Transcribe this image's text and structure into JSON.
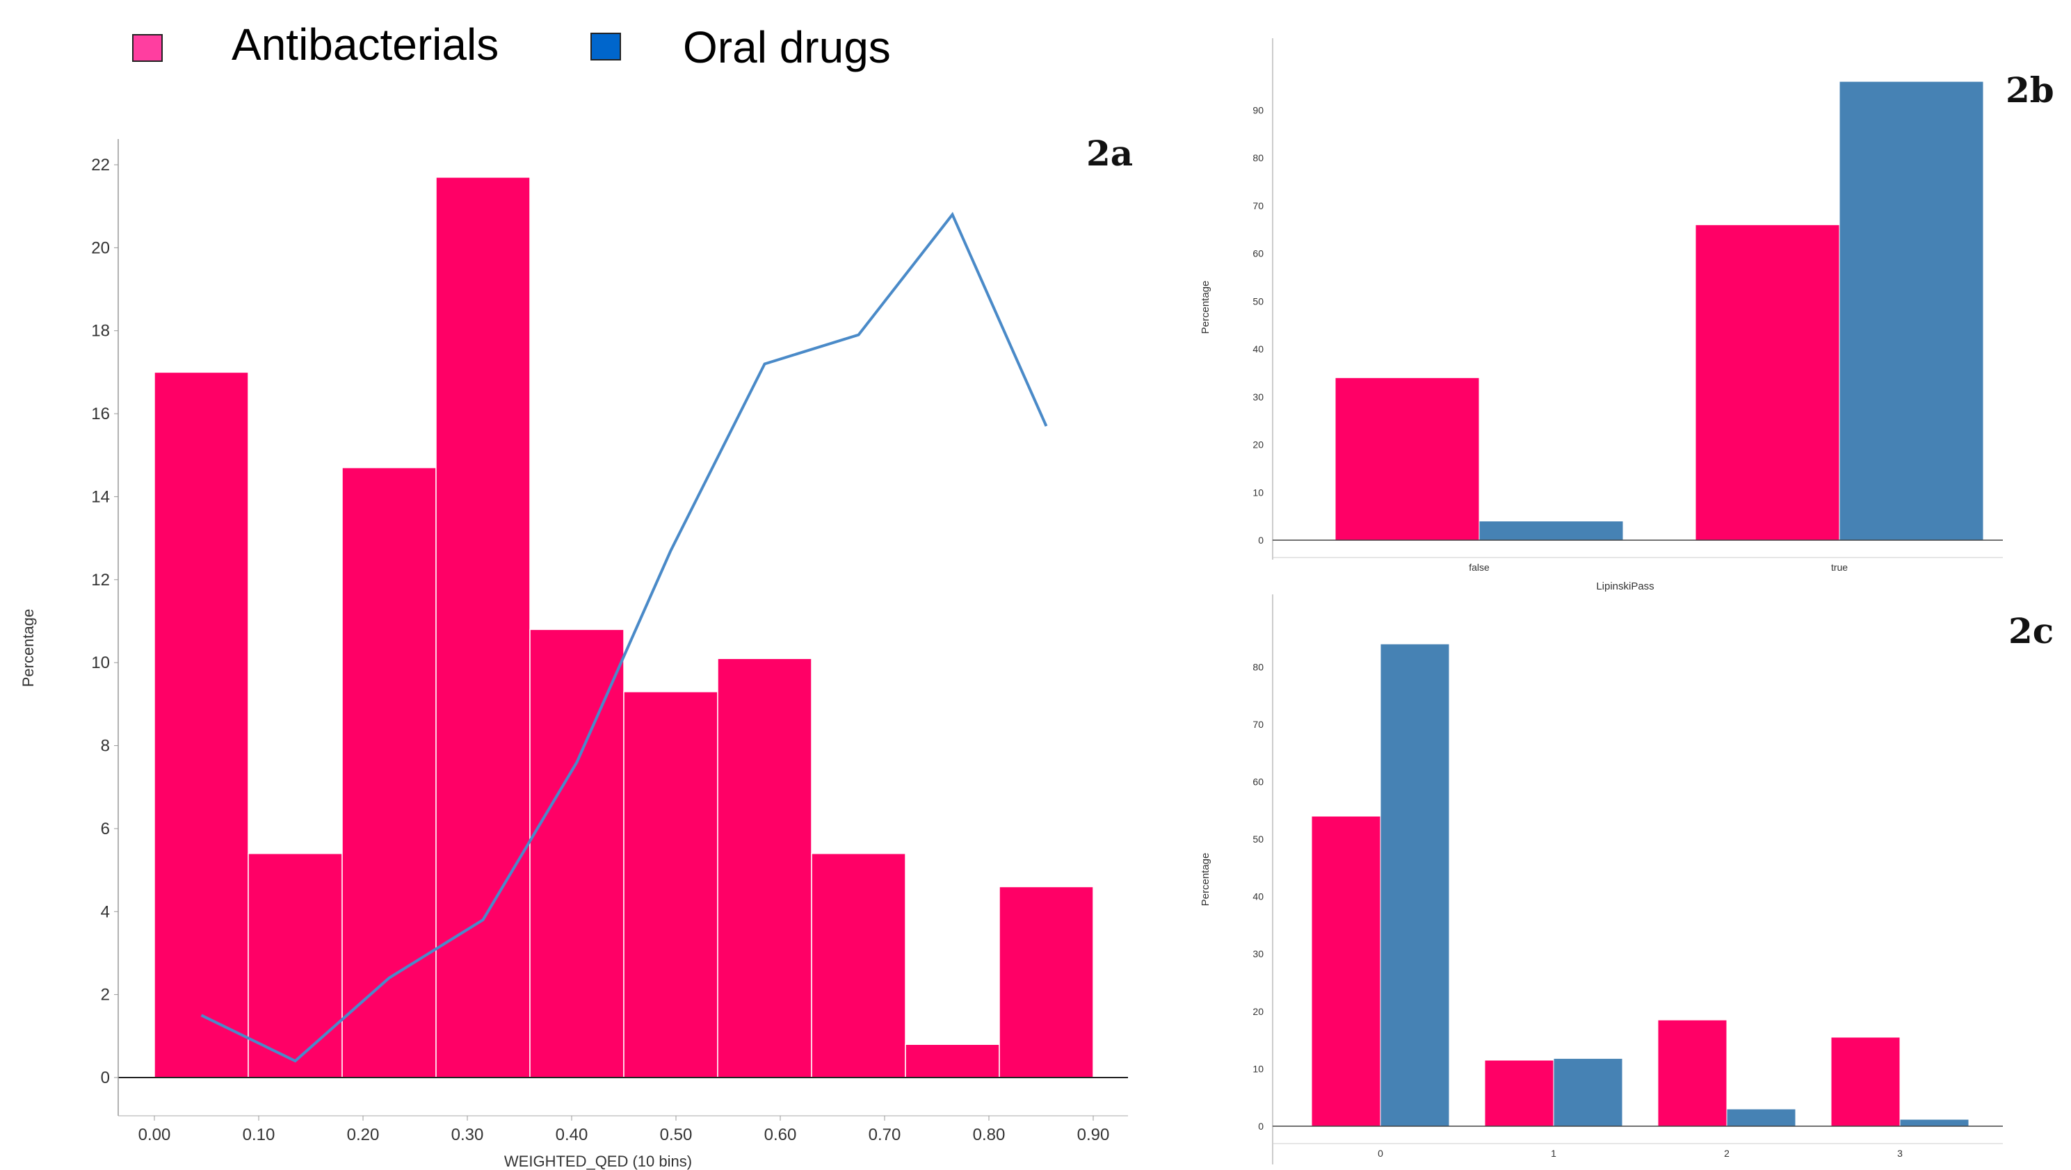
{
  "legend": {
    "items": [
      {
        "label": "Antibacterials",
        "color": "#ff0066"
      },
      {
        "label": "Oral drugs",
        "color": "#0066cc"
      }
    ]
  },
  "colors": {
    "antibacterial": "#ff0066",
    "oral_bar": "#4682b4",
    "oral_line": "#4a8ac8",
    "axis": "#555555"
  },
  "chart_data": [
    {
      "id": "2a",
      "panel_label": "2a",
      "type": "bar",
      "xlabel": "WEIGHTED_QED (10 bins)",
      "ylabel": "Percentage",
      "ylim": [
        0,
        22
      ],
      "xlim": [
        0,
        0.9
      ],
      "yticks": [
        0,
        2,
        4,
        6,
        8,
        10,
        12,
        14,
        16,
        18,
        20,
        22
      ],
      "xticks": [
        "0.00",
        "0.10",
        "0.20",
        "0.30",
        "0.40",
        "0.50",
        "0.60",
        "0.70",
        "0.80",
        "0.90"
      ],
      "bin_edges": [
        0.0,
        0.09,
        0.18,
        0.27,
        0.36,
        0.45,
        0.54,
        0.63,
        0.72,
        0.81,
        0.9
      ],
      "series": [
        {
          "name": "Antibacterials",
          "kind": "histogram",
          "values": [
            17.0,
            5.4,
            14.7,
            21.7,
            10.8,
            9.3,
            10.1,
            5.4,
            0.8,
            4.6
          ]
        },
        {
          "name": "Oral drugs",
          "kind": "line",
          "x": [
            0.045,
            0.135,
            0.225,
            0.315,
            0.405,
            0.495,
            0.585,
            0.675,
            0.765,
            0.855
          ],
          "values": [
            1.5,
            0.4,
            2.4,
            3.8,
            7.6,
            12.7,
            17.2,
            17.9,
            20.8,
            15.7
          ]
        }
      ]
    },
    {
      "id": "2b",
      "panel_label": "2b",
      "type": "bar",
      "xlabel": "LipinskiPass",
      "ylabel": "Percentage",
      "ylim": [
        0,
        95
      ],
      "yticks": [
        0,
        10,
        20,
        30,
        40,
        50,
        60,
        70,
        80,
        90
      ],
      "categories": [
        "false",
        "true"
      ],
      "series": [
        {
          "name": "Antibacterials",
          "values": [
            34,
            66
          ]
        },
        {
          "name": "Oral drugs",
          "values": [
            4,
            96
          ]
        }
      ]
    },
    {
      "id": "2c",
      "panel_label": "2c",
      "type": "bar",
      "xlabel": "",
      "ylabel": "Percentage",
      "ylim": [
        0,
        85
      ],
      "yticks": [
        0,
        10,
        20,
        30,
        40,
        50,
        60,
        70,
        80
      ],
      "categories": [
        "0",
        "1",
        "2",
        "3"
      ],
      "series": [
        {
          "name": "Antibacterials",
          "values": [
            54,
            11.5,
            18.5,
            15.5
          ]
        },
        {
          "name": "Oral drugs",
          "values": [
            84,
            11.8,
            3,
            1.2
          ]
        }
      ]
    }
  ]
}
